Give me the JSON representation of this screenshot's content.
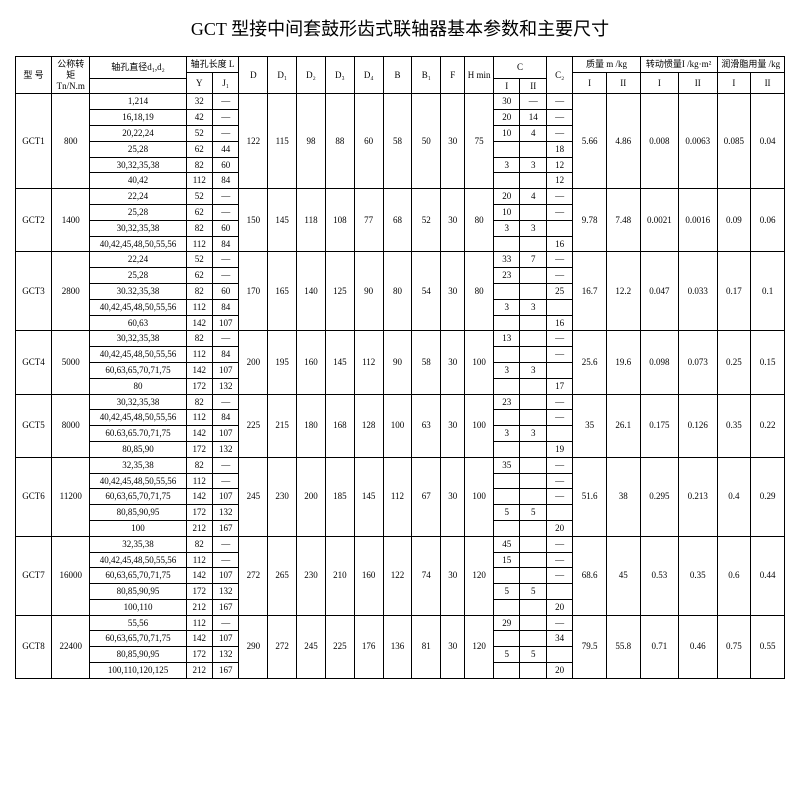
{
  "title": "GCT 型接中间套鼓形齿式联轴器基本参数和主要尺寸",
  "headers": {
    "model": "型 号",
    "torque": "公称转矩Tn/N.m",
    "shaft_d": "轴孔直径d₁,d₂",
    "shaft_l": "轴孔长度 L",
    "Y": "Y",
    "J1": "J₁",
    "D": "D",
    "D1": "D₁",
    "D2": "D₂",
    "D3": "D₃",
    "D4": "D₄",
    "B": "B",
    "B1": "B₁",
    "F": "F",
    "H": "H min",
    "C": "C",
    "C2": "C₂",
    "I": "I",
    "II": "II",
    "mass": "质量 m /kg",
    "inertia": "转动惯量I /kg·m²",
    "grease": "润滑脂用量 /kg"
  },
  "rows": [
    {
      "m": "GCT1",
      "t": "800",
      "d": [
        "1,214",
        "16,18,19",
        "20,22,24",
        "25,28",
        "30,32,35,38",
        "40,42"
      ],
      "Y": [
        "32",
        "42",
        "52",
        "62",
        "82",
        "112"
      ],
      "J": [
        "—",
        "—",
        "—",
        "44",
        "60",
        "84"
      ],
      "D": "122",
      "D1": "115",
      "D2": "98",
      "D3": "88",
      "D4": "60",
      "B": "58",
      "B1": "50",
      "F": "30",
      "H": "75",
      "CI": [
        "30",
        "20",
        "10",
        "",
        "3",
        ""
      ],
      "CII": [
        "—",
        "14",
        "4",
        "",
        "3",
        ""
      ],
      "C2": [
        "—",
        "—",
        "—",
        "18",
        "12",
        "12"
      ],
      "mI": "5.66",
      "mII": "4.86",
      "iI": "0.008",
      "iII": "0.0063",
      "gI": "0.085",
      "gII": "0.04"
    },
    {
      "m": "GCT2",
      "t": "1400",
      "d": [
        "22,24",
        "25,28",
        "30,32,35,38",
        "40,42,45,48,50,55,56"
      ],
      "Y": [
        "52",
        "62",
        "82",
        "112"
      ],
      "J": [
        "—",
        "—",
        "60",
        "84"
      ],
      "D": "150",
      "D1": "145",
      "D2": "118",
      "D3": "108",
      "D4": "77",
      "B": "68",
      "B1": "52",
      "F": "30",
      "H": "80",
      "CI": [
        "20",
        "10",
        "3",
        ""
      ],
      "CII": [
        "4",
        "",
        "3",
        ""
      ],
      "C2": [
        "—",
        "—",
        "",
        "16"
      ],
      "mI": "9.78",
      "mII": "7.48",
      "iI": "0.0021",
      "iII": "0.0016",
      "gI": "0.09",
      "gII": "0.06"
    },
    {
      "m": "GCT3",
      "t": "2800",
      "d": [
        "22,24",
        "25,28",
        "30.32,35,38",
        "40,42,45,48,50,55,56",
        "60,63"
      ],
      "Y": [
        "52",
        "62",
        "82",
        "112",
        "142"
      ],
      "J": [
        "—",
        "—",
        "60",
        "84",
        "107"
      ],
      "D": "170",
      "D1": "165",
      "D2": "140",
      "D3": "125",
      "D4": "90",
      "B": "80",
      "B1": "54",
      "F": "30",
      "H": "80",
      "CI": [
        "33",
        "23",
        "",
        "3",
        ""
      ],
      "CII": [
        "7",
        "",
        "",
        "3",
        ""
      ],
      "C2": [
        "—",
        "—",
        "25",
        "",
        "16"
      ],
      "mI": "16.7",
      "mII": "12.2",
      "iI": "0.047",
      "iII": "0.033",
      "gI": "0.17",
      "gII": "0.1"
    },
    {
      "m": "GCT4",
      "t": "5000",
      "d": [
        "30,32,35,38",
        "40,42,45,48,50,55,56",
        "60,63,65,70,71,75",
        "80"
      ],
      "Y": [
        "82",
        "112",
        "142",
        "172"
      ],
      "J": [
        "—",
        "84",
        "107",
        "132"
      ],
      "D": "200",
      "D1": "195",
      "D2": "160",
      "D3": "145",
      "D4": "112",
      "B": "90",
      "B1": "58",
      "F": "30",
      "H": "100",
      "CI": [
        "13",
        "",
        "3",
        ""
      ],
      "CII": [
        "",
        "",
        "3",
        ""
      ],
      "C2": [
        "—",
        "—",
        "",
        "17"
      ],
      "mI": "25.6",
      "mII": "19.6",
      "iI": "0.098",
      "iII": "0.073",
      "gI": "0.25",
      "gII": "0.15"
    },
    {
      "m": "GCT5",
      "t": "8000",
      "d": [
        "30,32,35,38",
        "40,42,45,48,50,55,56",
        "60.63,65.70,71,75",
        "80,85,90"
      ],
      "Y": [
        "82",
        "112",
        "142",
        "172"
      ],
      "J": [
        "—",
        "84",
        "107",
        "132"
      ],
      "D": "225",
      "D1": "215",
      "D2": "180",
      "D3": "168",
      "D4": "128",
      "B": "100",
      "B1": "63",
      "F": "30",
      "H": "100",
      "CI": [
        "23",
        "",
        "3",
        ""
      ],
      "CII": [
        "",
        "",
        "3",
        ""
      ],
      "C2": [
        "—",
        "—",
        "",
        "19"
      ],
      "mI": "35",
      "mII": "26.1",
      "iI": "0.175",
      "iII": "0.126",
      "gI": "0.35",
      "gII": "0.22"
    },
    {
      "m": "GCT6",
      "t": "11200",
      "d": [
        "32,35,38",
        "40,42,45,48,50,55,56",
        "60,63,65,70,71,75",
        "80,85,90,95",
        "100"
      ],
      "Y": [
        "82",
        "112",
        "142",
        "172",
        "212"
      ],
      "J": [
        "—",
        "—",
        "107",
        "132",
        "167"
      ],
      "D": "245",
      "D1": "230",
      "D2": "200",
      "D3": "185",
      "D4": "145",
      "B": "112",
      "B1": "67",
      "F": "30",
      "H": "100",
      "CI": [
        "35",
        "",
        "",
        "5",
        ""
      ],
      "CII": [
        "",
        "",
        "",
        "5",
        ""
      ],
      "C2": [
        "—",
        "—",
        "—",
        "",
        "20"
      ],
      "mI": "51.6",
      "mII": "38",
      "iI": "0.295",
      "iII": "0.213",
      "gI": "0.4",
      "gII": "0.29"
    },
    {
      "m": "GCT7",
      "t": "16000",
      "d": [
        "32,35,38",
        "40,42,45,48,50,55,56",
        "60,63,65,70,71,75",
        "80,85,90,95",
        "100,110"
      ],
      "Y": [
        "82",
        "112",
        "142",
        "172",
        "212"
      ],
      "J": [
        "—",
        "—",
        "107",
        "132",
        "167"
      ],
      "D": "272",
      "D1": "265",
      "D2": "230",
      "D3": "210",
      "D4": "160",
      "B": "122",
      "B1": "74",
      "F": "30",
      "H": "120",
      "CI": [
        "45",
        "15",
        "",
        "5",
        ""
      ],
      "CII": [
        "",
        "",
        "",
        "5",
        ""
      ],
      "C2": [
        "—",
        "—",
        "—",
        "",
        "20"
      ],
      "mI": "68.6",
      "mII": "45",
      "iI": "0.53",
      "iII": "0.35",
      "gI": "0.6",
      "gII": "0.44"
    },
    {
      "m": "GCT8",
      "t": "22400",
      "d": [
        "55,56",
        "60,63,65,70,71,75",
        "80,85,90,95",
        "100,110,120,125"
      ],
      "Y": [
        "112",
        "142",
        "172",
        "212"
      ],
      "J": [
        "—",
        "107",
        "132",
        "167"
      ],
      "D": "290",
      "D1": "272",
      "D2": "245",
      "D3": "225",
      "D4": "176",
      "B": "136",
      "B1": "81",
      "F": "30",
      "H": "120",
      "CI": [
        "29",
        "",
        "5",
        ""
      ],
      "CII": [
        "",
        "",
        "5",
        ""
      ],
      "C2": [
        "—",
        "34",
        "",
        "20"
      ],
      "mI": "79.5",
      "mII": "55.8",
      "iI": "0.71",
      "iII": "0.46",
      "gI": "0.75",
      "gII": "0.55"
    }
  ]
}
